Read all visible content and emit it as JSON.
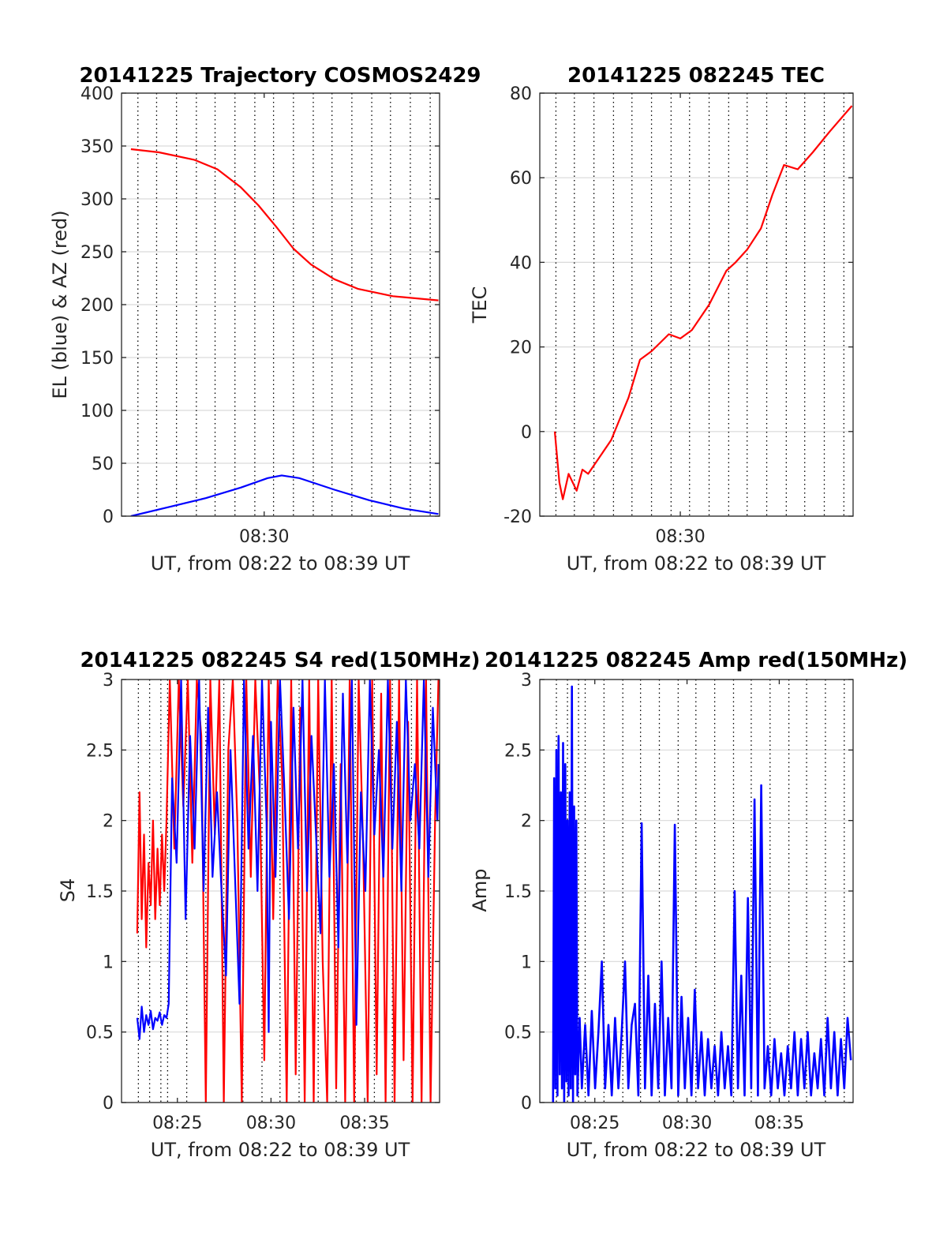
{
  "colors": {
    "el": "#0000ff",
    "az": "#ff0000",
    "tec": "#ff0000",
    "s4_red": "#ff0000",
    "s4_blue": "#0000ff",
    "amp_red": "#ff0000",
    "amp_blue": "#0000ff",
    "grid": "#d9d9d9",
    "axis": "#262626"
  },
  "chart_data": [
    {
      "type": "line",
      "title": "20141225 Trajectory COSMOS2429",
      "xlabel": "UT, from 08:22 to 08:39 UT",
      "ylabel": "EL (blue) & AZ (red)",
      "xlim": [
        8.378,
        8.65
      ],
      "ylim": [
        0,
        400
      ],
      "yticks": [
        0,
        50,
        100,
        150,
        200,
        250,
        300,
        350,
        400
      ],
      "xticks": [
        {
          "value": 8.5,
          "label": "08:30"
        }
      ],
      "dotted_verticals": [
        8.392,
        8.408,
        8.425,
        8.442,
        8.458,
        8.475,
        8.492,
        8.508,
        8.525,
        8.542,
        8.558,
        8.575,
        8.592,
        8.608,
        8.625,
        8.642
      ],
      "grid": true,
      "series": [
        {
          "key": "el",
          "x": [
            8.386,
            8.42,
            8.45,
            8.48,
            8.503,
            8.515,
            8.53,
            8.56,
            8.59,
            8.62,
            8.649
          ],
          "values": [
            0,
            9,
            17,
            27,
            36,
            38.5,
            36,
            25,
            15,
            7,
            2
          ]
        },
        {
          "key": "az",
          "x": [
            8.386,
            8.41,
            8.44,
            8.46,
            8.48,
            8.495,
            8.51,
            8.525,
            8.54,
            8.56,
            8.58,
            8.61,
            8.649
          ],
          "values": [
            347,
            344,
            337,
            328,
            311,
            294,
            274,
            253,
            238,
            224,
            215,
            208,
            204
          ]
        }
      ]
    },
    {
      "type": "line",
      "title": "20141225 082245 TEC",
      "xlabel": "UT, from 08:22 to 08:39 UT",
      "ylabel": "TEC",
      "xlim": [
        8.378,
        8.65
      ],
      "ylim": [
        -20,
        80
      ],
      "yticks": [
        -20,
        0,
        20,
        40,
        60,
        80
      ],
      "xticks": [
        {
          "value": 8.5,
          "label": "08:30"
        }
      ],
      "dotted_verticals": [
        8.392,
        8.408,
        8.425,
        8.442,
        8.458,
        8.475,
        8.492,
        8.508,
        8.525,
        8.542,
        8.558,
        8.575,
        8.592,
        8.608,
        8.625,
        8.642
      ],
      "grid": true,
      "series": [
        {
          "key": "tec",
          "x": [
            8.391,
            8.395,
            8.398,
            8.403,
            8.41,
            8.415,
            8.42,
            8.44,
            8.455,
            8.465,
            8.475,
            8.49,
            8.5,
            8.51,
            8.525,
            8.54,
            8.548,
            8.558,
            8.57,
            8.58,
            8.59,
            8.602,
            8.615,
            8.63,
            8.649
          ],
          "values": [
            0,
            -12,
            -16,
            -10,
            -14,
            -9,
            -10,
            -2,
            8,
            17,
            19,
            23,
            22,
            24,
            30,
            38,
            40,
            43,
            48,
            56,
            63,
            62,
            66,
            71,
            77
          ]
        }
      ]
    },
    {
      "type": "line",
      "title": "20141225 082245 S4 red(150MHz)",
      "xlabel": "UT, from 08:22 to 08:39 UT",
      "ylabel": "S4",
      "xlim": [
        8.367,
        8.65
      ],
      "ylim": [
        0,
        3
      ],
      "yticks": [
        0,
        0.5,
        1,
        1.5,
        2,
        2.5,
        3
      ],
      "xticks": [
        {
          "value": 8.4167,
          "label": "08:25"
        },
        {
          "value": 8.5,
          "label": "08:30"
        },
        {
          "value": 8.5833,
          "label": "08:35"
        }
      ],
      "dotted_verticals": [
        8.382,
        8.392,
        8.402,
        8.408,
        8.425,
        8.442,
        8.458,
        8.475,
        8.492,
        8.508,
        8.525,
        8.542,
        8.558,
        8.575,
        8.592,
        8.608,
        8.625,
        8.642
      ],
      "grid": true,
      "series": [
        {
          "key": "s4_red",
          "x": [
            8.381,
            8.383,
            8.385,
            8.387,
            8.389,
            8.391,
            8.393,
            8.395,
            8.397,
            8.399,
            8.401,
            8.403,
            8.405,
            8.407,
            8.41,
            8.414,
            8.418,
            8.422,
            8.426,
            8.43,
            8.434,
            8.438,
            8.442,
            8.446,
            8.45,
            8.454,
            8.458,
            8.462,
            8.466,
            8.47,
            8.474,
            8.478,
            8.482,
            8.486,
            8.49,
            8.494,
            8.498,
            8.502,
            8.506,
            8.51,
            8.514,
            8.518,
            8.522,
            8.526,
            8.53,
            8.534,
            8.538,
            8.542,
            8.546,
            8.55,
            8.554,
            8.558,
            8.562,
            8.566,
            8.57,
            8.574,
            8.578,
            8.582,
            8.586,
            8.59,
            8.594,
            8.598,
            8.602,
            8.606,
            8.61,
            8.614,
            8.618,
            8.622,
            8.626,
            8.63,
            8.634,
            8.638,
            8.642,
            8.646,
            8.649
          ],
          "values": [
            1.2,
            2.2,
            1.3,
            1.9,
            1.1,
            1.7,
            1.4,
            2.0,
            1.3,
            1.8,
            1.4,
            1.9,
            1.5,
            2.0,
            3.0,
            1.8,
            3.0,
            2.1,
            3.0,
            1.7,
            3.0,
            2.6,
            0,
            3.0,
            1.9,
            3.0,
            0,
            2.5,
            3.0,
            2.0,
            0,
            3.0,
            1.6,
            3.0,
            2.2,
            0.3,
            3.0,
            1.3,
            3.0,
            2.3,
            0,
            3.0,
            0.2,
            2.8,
            0,
            3.0,
            0,
            3.0,
            1.0,
            0,
            3.0,
            0.1,
            2.4,
            0,
            3.0,
            0,
            3.0,
            1.8,
            0,
            3.0,
            0.2,
            2.9,
            0,
            3.0,
            0,
            3.0,
            0.3,
            2.7,
            0,
            3.0,
            0,
            3.0,
            0,
            2.0,
            3.0
          ]
        },
        {
          "key": "s4_blue",
          "x": [
            8.381,
            8.383,
            8.385,
            8.387,
            8.389,
            8.391,
            8.393,
            8.395,
            8.397,
            8.399,
            8.401,
            8.403,
            8.405,
            8.407,
            8.409,
            8.412,
            8.416,
            8.42,
            8.424,
            8.428,
            8.432,
            8.436,
            8.44,
            8.444,
            8.448,
            8.452,
            8.456,
            8.46,
            8.464,
            8.468,
            8.472,
            8.476,
            8.48,
            8.484,
            8.488,
            8.492,
            8.496,
            8.498,
            8.5,
            8.504,
            8.508,
            8.512,
            8.516,
            8.52,
            8.524,
            8.528,
            8.532,
            8.536,
            8.54,
            8.544,
            8.548,
            8.552,
            8.556,
            8.56,
            8.564,
            8.568,
            8.572,
            8.576,
            8.58,
            8.584,
            8.588,
            8.592,
            8.596,
            8.6,
            8.604,
            8.608,
            8.612,
            8.616,
            8.62,
            8.624,
            8.628,
            8.632,
            8.636,
            8.64,
            8.644,
            8.648,
            8.649
          ],
          "values": [
            0.6,
            0.45,
            0.68,
            0.5,
            0.62,
            0.55,
            0.65,
            0.52,
            0.6,
            0.58,
            0.64,
            0.55,
            0.62,
            0.6,
            0.7,
            2.3,
            1.7,
            3.0,
            1.3,
            2.6,
            1.8,
            3.0,
            1.5,
            2.8,
            1.6,
            2.2,
            1.5,
            0.9,
            2.5,
            1.6,
            0.7,
            3.0,
            1.8,
            2.6,
            1.5,
            3.0,
            2.0,
            0.5,
            2.7,
            1.6,
            3.0,
            2.2,
            1.3,
            2.8,
            1.8,
            3.0,
            1.5,
            2.6,
            1.9,
            1.2,
            3.0,
            1.6,
            2.4,
            1.1,
            2.9,
            1.7,
            3.0,
            0.55,
            2.2,
            1.5,
            3.0,
            1.9,
            2.5,
            1.6,
            3.0,
            1.8,
            2.7,
            1.5,
            3.0,
            2.0,
            2.4,
            1.8,
            3.0,
            1.6,
            2.8,
            2.0,
            2.4
          ]
        }
      ]
    },
    {
      "type": "line",
      "title": "20141225 082245 Amp red(150MHz)",
      "xlabel": "UT, from 08:22 to 08:39 UT",
      "ylabel": "Amp",
      "xlim": [
        8.367,
        8.65
      ],
      "ylim": [
        0,
        3
      ],
      "yticks": [
        0,
        0.5,
        1,
        1.5,
        2,
        2.5,
        3
      ],
      "xticks": [
        {
          "value": 8.4167,
          "label": "08:25"
        },
        {
          "value": 8.5,
          "label": "08:30"
        },
        {
          "value": 8.5833,
          "label": "08:35"
        }
      ],
      "dotted_verticals": [
        8.382,
        8.392,
        8.402,
        8.408,
        8.425,
        8.442,
        8.458,
        8.475,
        8.492,
        8.508,
        8.525,
        8.542,
        8.558,
        8.575,
        8.592,
        8.608,
        8.625,
        8.642
      ],
      "grid": true,
      "series": [
        {
          "key": "amp_blue",
          "x": [
            8.379,
            8.38,
            8.381,
            8.382,
            8.383,
            8.384,
            8.385,
            8.386,
            8.387,
            8.388,
            8.389,
            8.39,
            8.391,
            8.392,
            8.393,
            8.394,
            8.395,
            8.396,
            8.397,
            8.398,
            8.399,
            8.4,
            8.401,
            8.403,
            8.405,
            8.408,
            8.411,
            8.414,
            8.417,
            8.42,
            8.423,
            8.426,
            8.429,
            8.432,
            8.435,
            8.438,
            8.441,
            8.444,
            8.447,
            8.45,
            8.453,
            8.456,
            8.459,
            8.462,
            8.465,
            8.468,
            8.471,
            8.474,
            8.477,
            8.48,
            8.483,
            8.486,
            8.489,
            8.492,
            8.495,
            8.498,
            8.501,
            8.504,
            8.507,
            8.51,
            8.513,
            8.516,
            8.519,
            8.522,
            8.525,
            8.528,
            8.531,
            8.534,
            8.537,
            8.54,
            8.543,
            8.546,
            8.549,
            8.552,
            8.555,
            8.558,
            8.561,
            8.564,
            8.567,
            8.57,
            8.573,
            8.576,
            8.579,
            8.582,
            8.585,
            8.588,
            8.591,
            8.594,
            8.597,
            8.6,
            8.603,
            8.606,
            8.609,
            8.612,
            8.615,
            8.618,
            8.621,
            8.624,
            8.627,
            8.63,
            8.633,
            8.636,
            8.639,
            8.642,
            8.645,
            8.648
          ],
          "values": [
            0,
            2.3,
            0.1,
            2.5,
            0.05,
            2.6,
            0.2,
            2.2,
            0.1,
            2.55,
            0,
            2.4,
            0.15,
            2.0,
            0.05,
            2.2,
            0.1,
            2.95,
            0,
            2.1,
            0.2,
            2.0,
            0.05,
            0.6,
            0.1,
            0.55,
            0.05,
            0.65,
            0.1,
            0.5,
            1.0,
            0.1,
            0.55,
            0.05,
            0.6,
            0.1,
            0.5,
            1.0,
            0.1,
            0.55,
            0.7,
            0.05,
            1.98,
            0.1,
            0.9,
            0.05,
            0.7,
            0.1,
            1.0,
            0.05,
            0.6,
            0.1,
            1.97,
            0.05,
            0.75,
            0.1,
            0.6,
            0.05,
            0.8,
            0.1,
            0.5,
            0.05,
            0.45,
            0.1,
            0.4,
            0.05,
            0.5,
            0.1,
            0.4,
            0.05,
            1.5,
            0.1,
            0.9,
            0.05,
            1.45,
            0.1,
            2.15,
            0.05,
            2.25,
            0.1,
            0.4,
            0.05,
            0.45,
            0.1,
            0.35,
            0.05,
            0.4,
            0.1,
            0.5,
            0.05,
            0.45,
            0.1,
            0.5,
            0.05,
            0.35,
            0.1,
            0.45,
            0.05,
            0.6,
            0.1,
            0.5,
            0.05,
            0.45,
            0.1,
            0.6,
            0.3
          ]
        }
      ]
    }
  ]
}
